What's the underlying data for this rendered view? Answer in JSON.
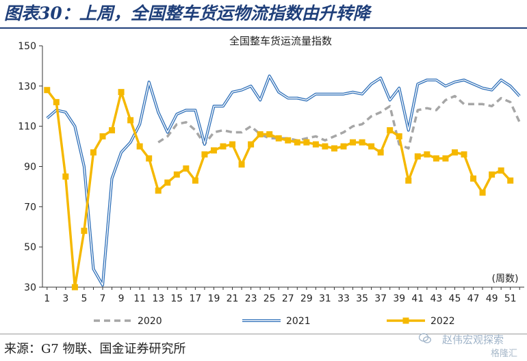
{
  "figure": {
    "title": "图表30：上周，全国整车货运物流指数由升转降",
    "source": "来源：G7 物联、国金证券研究所"
  },
  "watermark": {
    "line1": "赵伟宏观探索",
    "line2": "格隆汇"
  },
  "chart_data": {
    "type": "line",
    "title": "全国整车货运流量指数",
    "xlabel": "(周数)",
    "ylabel": "",
    "xlim": [
      1,
      52
    ],
    "ylim": [
      30,
      150
    ],
    "yticks": [
      30,
      50,
      70,
      90,
      110,
      130,
      150
    ],
    "xticks": [
      1,
      3,
      5,
      7,
      9,
      11,
      13,
      15,
      17,
      19,
      21,
      23,
      25,
      27,
      29,
      31,
      33,
      35,
      37,
      39,
      41,
      43,
      45,
      47,
      49,
      51
    ],
    "legend_position": "bottom",
    "series": [
      {
        "name": "2020",
        "color": "#a6a6a6",
        "style": "dashed",
        "x": [
          13,
          14,
          15,
          16,
          17,
          18,
          19,
          20,
          21,
          22,
          23,
          24,
          25,
          26,
          27,
          28,
          29,
          30,
          31,
          32,
          33,
          34,
          35,
          36,
          37,
          38,
          39,
          40,
          41,
          42,
          43,
          44,
          45,
          46,
          47,
          48,
          49,
          50,
          51,
          52
        ],
        "values": [
          102,
          105,
          111,
          112,
          108,
          101,
          107,
          108,
          107,
          107,
          110,
          106,
          104,
          104,
          104,
          103,
          104,
          105,
          103,
          105,
          107,
          110,
          111,
          115,
          117,
          120,
          101,
          99,
          118,
          119,
          118,
          123,
          125,
          121,
          121,
          121,
          120,
          124,
          122,
          112
        ]
      },
      {
        "name": "2021",
        "color": "#2e6fb8",
        "style": "double",
        "x": [
          1,
          2,
          3,
          4,
          5,
          6,
          7,
          8,
          9,
          10,
          11,
          12,
          13,
          14,
          15,
          16,
          17,
          18,
          19,
          20,
          21,
          22,
          23,
          24,
          25,
          26,
          27,
          28,
          29,
          30,
          31,
          32,
          33,
          34,
          35,
          36,
          37,
          38,
          39,
          40,
          41,
          42,
          43,
          44,
          45,
          46,
          47,
          48,
          49,
          50,
          51,
          52
        ],
        "values": [
          114,
          118,
          117,
          110,
          90,
          39,
          31,
          84,
          97,
          102,
          111,
          132,
          117,
          107,
          116,
          118,
          118,
          101,
          120,
          120,
          127,
          128,
          130,
          123,
          135,
          127,
          124,
          124,
          123,
          126,
          126,
          126,
          126,
          127,
          126,
          131,
          134,
          123,
          129,
          108,
          131,
          133,
          133,
          130,
          132,
          133,
          131,
          129,
          128,
          133,
          130,
          125
        ]
      },
      {
        "name": "2022",
        "color": "#f5b800",
        "style": "solid-square",
        "x": [
          1,
          2,
          3,
          4,
          5,
          6,
          7,
          8,
          9,
          10,
          11,
          12,
          13,
          14,
          15,
          16,
          17,
          18,
          19,
          20,
          21,
          22,
          23,
          24,
          25,
          26,
          27,
          28,
          29,
          30,
          31,
          32,
          33,
          34,
          35,
          36,
          37,
          38,
          39,
          40,
          41,
          42,
          43,
          44,
          45,
          46,
          47,
          48,
          49,
          50,
          51
        ],
        "values": [
          128,
          122,
          85,
          30,
          58,
          97,
          105,
          108,
          127,
          113,
          100,
          94,
          78,
          82,
          86,
          89,
          83,
          96,
          98,
          100,
          101,
          91,
          101,
          106,
          106,
          104,
          103,
          102,
          102,
          101,
          100,
          99,
          100,
          102,
          102,
          100,
          97,
          108,
          105,
          83,
          95,
          96,
          94,
          94,
          97,
          96,
          84,
          77,
          86,
          88,
          83
        ]
      }
    ]
  }
}
